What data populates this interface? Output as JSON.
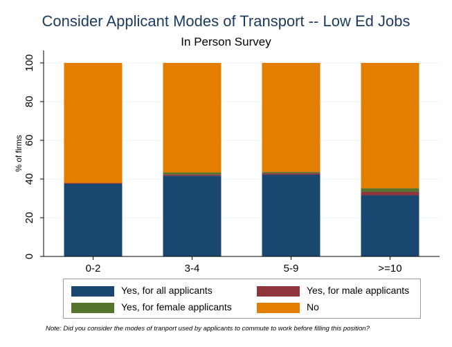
{
  "chart_data": {
    "type": "bar",
    "stacked": true,
    "title": "Consider Applicant Modes of Transport -- Low Ed Jobs",
    "subtitle": "In Person Survey",
    "xlabel": "",
    "ylabel": "% of firms",
    "ylim": [
      0,
      100
    ],
    "yticks": [
      0,
      20,
      40,
      60,
      80,
      100
    ],
    "grid": true,
    "legend_position": "bottom",
    "categories": [
      "0-2",
      "3-4",
      "5-9",
      ">=10"
    ],
    "series": [
      {
        "name": "Yes, for all applicants",
        "color": "#1a476f",
        "values": [
          37.5,
          41.7,
          42.3,
          31.6
        ]
      },
      {
        "name": "Yes, for male applicants",
        "color": "#90353b",
        "values": [
          0.5,
          0.7,
          0.8,
          1.8
        ]
      },
      {
        "name": "Yes, for female applicants",
        "color": "#55752f",
        "values": [
          0,
          1.0,
          0.6,
          1.8
        ]
      },
      {
        "name": "No",
        "color": "#e37e00",
        "values": [
          62.0,
          56.6,
          56.3,
          64.8
        ]
      }
    ],
    "note": "Note: Did you consider the modes of tranport used by applicants to commute to work before filling this position?"
  }
}
